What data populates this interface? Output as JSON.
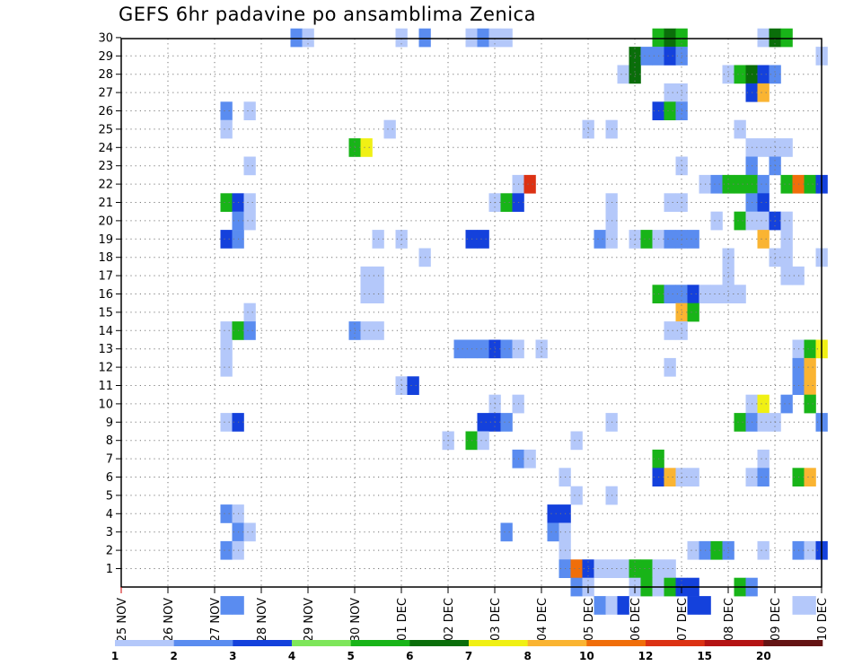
{
  "chart_data": {
    "type": "heatmap",
    "title": "GEFS 6hr padavine po ansamblima Zenica",
    "xlabel": "",
    "ylabel": "",
    "x_ticks": [
      "25 NOV",
      "26 NOV",
      "27 NOV",
      "28 NOV",
      "29 NOV",
      "30 NOV",
      "01 DEC",
      "02 DEC",
      "03 DEC",
      "04 DEC",
      "05 DEC",
      "06 DEC",
      "07 DEC",
      "08 DEC",
      "09 DEC",
      "10 DEC"
    ],
    "y_ticks": [
      "1",
      "2",
      "3",
      "4",
      "5",
      "6",
      "7",
      "8",
      "9",
      "10",
      "11",
      "12",
      "13",
      "14",
      "15",
      "16",
      "17",
      "18",
      "19",
      "20",
      "21",
      "22",
      "23",
      "24",
      "25",
      "26",
      "27",
      "28",
      "29",
      "30"
    ],
    "steps_per_day": 4,
    "n_steps": 61,
    "colorbar": {
      "labels": [
        "1",
        "2",
        "3",
        "4",
        "5",
        "6",
        "7",
        "8",
        "10",
        "12",
        "15",
        "20"
      ],
      "colors": [
        "#b4c8fa",
        "#5a8cf0",
        "#1441dc",
        "#7ee65a",
        "#18b418",
        "#0a6e0a",
        "#f0f014",
        "#fab432",
        "#f06e0a",
        "#dc3214",
        "#b41414",
        "#641414"
      ]
    },
    "grid": true,
    "cells": [
      [
        30,
        15,
        2
      ],
      [
        30,
        16,
        1
      ],
      [
        30,
        24,
        1
      ],
      [
        30,
        26,
        2
      ],
      [
        30,
        30,
        1
      ],
      [
        30,
        31,
        2
      ],
      [
        30,
        32,
        1
      ],
      [
        30,
        33,
        1
      ],
      [
        30,
        46,
        5
      ],
      [
        30,
        47,
        6
      ],
      [
        30,
        48,
        5
      ],
      [
        30,
        55,
        1
      ],
      [
        30,
        56,
        6
      ],
      [
        30,
        57,
        5
      ],
      [
        29,
        44,
        6
      ],
      [
        29,
        45,
        2
      ],
      [
        29,
        46,
        2
      ],
      [
        29,
        47,
        3
      ],
      [
        29,
        48,
        2
      ],
      [
        29,
        60,
        1
      ],
      [
        28,
        43,
        1
      ],
      [
        28,
        44,
        6
      ],
      [
        28,
        52,
        1
      ],
      [
        28,
        53,
        5
      ],
      [
        28,
        54,
        6
      ],
      [
        28,
        55,
        3
      ],
      [
        28,
        56,
        2
      ],
      [
        27,
        47,
        1
      ],
      [
        27,
        48,
        1
      ],
      [
        27,
        54,
        3
      ],
      [
        27,
        55,
        8
      ],
      [
        26,
        9,
        2
      ],
      [
        26,
        11,
        1
      ],
      [
        26,
        46,
        3
      ],
      [
        26,
        47,
        5
      ],
      [
        26,
        48,
        2
      ],
      [
        25,
        9,
        1
      ],
      [
        25,
        23,
        1
      ],
      [
        25,
        40,
        1
      ],
      [
        25,
        42,
        1
      ],
      [
        25,
        53,
        1
      ],
      [
        24,
        20,
        5
      ],
      [
        24,
        21,
        7
      ],
      [
        24,
        54,
        1
      ],
      [
        24,
        55,
        1
      ],
      [
        24,
        56,
        1
      ],
      [
        24,
        57,
        1
      ],
      [
        23,
        11,
        1
      ],
      [
        23,
        48,
        1
      ],
      [
        23,
        54,
        2
      ],
      [
        23,
        56,
        2
      ],
      [
        22,
        34,
        1
      ],
      [
        22,
        35,
        10
      ],
      [
        22,
        50,
        1
      ],
      [
        22,
        51,
        2
      ],
      [
        22,
        52,
        5
      ],
      [
        22,
        53,
        5
      ],
      [
        22,
        54,
        5
      ],
      [
        22,
        55,
        2
      ],
      [
        22,
        57,
        5
      ],
      [
        22,
        58,
        9
      ],
      [
        22,
        59,
        5
      ],
      [
        22,
        60,
        3
      ],
      [
        21,
        9,
        5
      ],
      [
        21,
        10,
        3
      ],
      [
        21,
        11,
        1
      ],
      [
        21,
        32,
        1
      ],
      [
        21,
        33,
        5
      ],
      [
        21,
        34,
        3
      ],
      [
        21,
        42,
        1
      ],
      [
        21,
        47,
        1
      ],
      [
        21,
        48,
        1
      ],
      [
        21,
        54,
        2
      ],
      [
        21,
        55,
        3
      ],
      [
        20,
        10,
        2
      ],
      [
        20,
        11,
        1
      ],
      [
        20,
        42,
        1
      ],
      [
        20,
        51,
        1
      ],
      [
        20,
        53,
        5
      ],
      [
        20,
        54,
        1
      ],
      [
        20,
        55,
        1
      ],
      [
        20,
        56,
        3
      ],
      [
        20,
        57,
        1
      ],
      [
        19,
        9,
        3
      ],
      [
        19,
        10,
        2
      ],
      [
        19,
        22,
        1
      ],
      [
        19,
        24,
        1
      ],
      [
        19,
        30,
        3
      ],
      [
        19,
        31,
        3
      ],
      [
        19,
        41,
        2
      ],
      [
        19,
        42,
        1
      ],
      [
        19,
        44,
        1
      ],
      [
        19,
        45,
        5
      ],
      [
        19,
        46,
        1
      ],
      [
        19,
        47,
        2
      ],
      [
        19,
        48,
        2
      ],
      [
        19,
        49,
        2
      ],
      [
        19,
        55,
        8
      ],
      [
        19,
        57,
        1
      ],
      [
        18,
        26,
        1
      ],
      [
        18,
        52,
        1
      ],
      [
        18,
        56,
        1
      ],
      [
        18,
        57,
        1
      ],
      [
        18,
        60,
        1
      ],
      [
        17,
        21,
        1
      ],
      [
        17,
        22,
        1
      ],
      [
        17,
        52,
        1
      ],
      [
        17,
        57,
        1
      ],
      [
        17,
        58,
        1
      ],
      [
        16,
        21,
        1
      ],
      [
        16,
        22,
        1
      ],
      [
        16,
        46,
        5
      ],
      [
        16,
        47,
        2
      ],
      [
        16,
        48,
        2
      ],
      [
        16,
        49,
        3
      ],
      [
        16,
        50,
        1
      ],
      [
        16,
        51,
        1
      ],
      [
        16,
        52,
        1
      ],
      [
        16,
        53,
        1
      ],
      [
        15,
        11,
        1
      ],
      [
        15,
        48,
        8
      ],
      [
        15,
        49,
        5
      ],
      [
        14,
        9,
        1
      ],
      [
        14,
        10,
        5
      ],
      [
        14,
        11,
        2
      ],
      [
        14,
        20,
        2
      ],
      [
        14,
        21,
        1
      ],
      [
        14,
        22,
        1
      ],
      [
        14,
        47,
        1
      ],
      [
        14,
        48,
        1
      ],
      [
        13,
        9,
        1
      ],
      [
        13,
        29,
        2
      ],
      [
        13,
        30,
        2
      ],
      [
        13,
        31,
        2
      ],
      [
        13,
        32,
        3
      ],
      [
        13,
        33,
        2
      ],
      [
        13,
        34,
        1
      ],
      [
        13,
        36,
        1
      ],
      [
        13,
        58,
        1
      ],
      [
        13,
        59,
        5
      ],
      [
        13,
        60,
        7
      ],
      [
        12,
        9,
        1
      ],
      [
        12,
        47,
        1
      ],
      [
        12,
        58,
        2
      ],
      [
        12,
        59,
        8
      ],
      [
        11,
        24,
        1
      ],
      [
        11,
        25,
        3
      ],
      [
        11,
        58,
        2
      ],
      [
        11,
        59,
        8
      ],
      [
        10,
        32,
        1
      ],
      [
        10,
        34,
        1
      ],
      [
        10,
        54,
        1
      ],
      [
        10,
        55,
        7
      ],
      [
        10,
        57,
        2
      ],
      [
        10,
        59,
        5
      ],
      [
        9,
        9,
        1
      ],
      [
        9,
        10,
        3
      ],
      [
        9,
        31,
        3
      ],
      [
        9,
        32,
        3
      ],
      [
        9,
        33,
        2
      ],
      [
        9,
        42,
        1
      ],
      [
        9,
        53,
        5
      ],
      [
        9,
        54,
        2
      ],
      [
        9,
        55,
        1
      ],
      [
        9,
        56,
        1
      ],
      [
        9,
        60,
        2
      ],
      [
        8,
        28,
        1
      ],
      [
        8,
        30,
        5
      ],
      [
        8,
        31,
        1
      ],
      [
        8,
        39,
        1
      ],
      [
        7,
        34,
        2
      ],
      [
        7,
        35,
        1
      ],
      [
        7,
        46,
        5
      ],
      [
        7,
        55,
        1
      ],
      [
        6,
        38,
        1
      ],
      [
        6,
        46,
        3
      ],
      [
        6,
        47,
        8
      ],
      [
        6,
        48,
        1
      ],
      [
        6,
        49,
        1
      ],
      [
        6,
        54,
        1
      ],
      [
        6,
        55,
        2
      ],
      [
        6,
        58,
        5
      ],
      [
        6,
        59,
        8
      ],
      [
        5,
        39,
        1
      ],
      [
        5,
        42,
        1
      ],
      [
        4,
        9,
        2
      ],
      [
        4,
        10,
        1
      ],
      [
        4,
        37,
        3
      ],
      [
        4,
        38,
        3
      ],
      [
        3,
        10,
        2
      ],
      [
        3,
        11,
        1
      ],
      [
        3,
        33,
        2
      ],
      [
        3,
        37,
        2
      ],
      [
        3,
        38,
        1
      ],
      [
        2,
        9,
        2
      ],
      [
        2,
        10,
        1
      ],
      [
        2,
        38,
        1
      ],
      [
        2,
        49,
        1
      ],
      [
        2,
        50,
        2
      ],
      [
        2,
        51,
        5
      ],
      [
        2,
        52,
        2
      ],
      [
        2,
        55,
        1
      ],
      [
        2,
        58,
        2
      ],
      [
        2,
        59,
        1
      ],
      [
        2,
        60,
        3
      ],
      [
        1,
        38,
        2
      ],
      [
        1,
        39,
        9
      ],
      [
        1,
        40,
        3
      ],
      [
        1,
        41,
        1
      ],
      [
        1,
        42,
        1
      ],
      [
        1,
        43,
        1
      ],
      [
        1,
        44,
        5
      ],
      [
        1,
        45,
        5
      ],
      [
        1,
        46,
        1
      ],
      [
        1,
        47,
        1
      ],
      [
        0,
        39,
        2
      ],
      [
        0,
        40,
        1
      ],
      [
        0,
        44,
        1
      ],
      [
        0,
        45,
        5
      ],
      [
        0,
        46,
        1
      ],
      [
        0,
        47,
        5
      ],
      [
        0,
        48,
        3
      ],
      [
        0,
        49,
        3
      ],
      [
        0,
        53,
        5
      ],
      [
        0,
        54,
        2
      ],
      [
        -1,
        9,
        2
      ],
      [
        -1,
        10,
        2
      ],
      [
        -1,
        41,
        2
      ],
      [
        -1,
        42,
        1
      ],
      [
        -1,
        43,
        3
      ],
      [
        -1,
        49,
        3
      ],
      [
        -1,
        50,
        3
      ],
      [
        -1,
        58,
        1
      ],
      [
        -1,
        59,
        1
      ]
    ]
  }
}
